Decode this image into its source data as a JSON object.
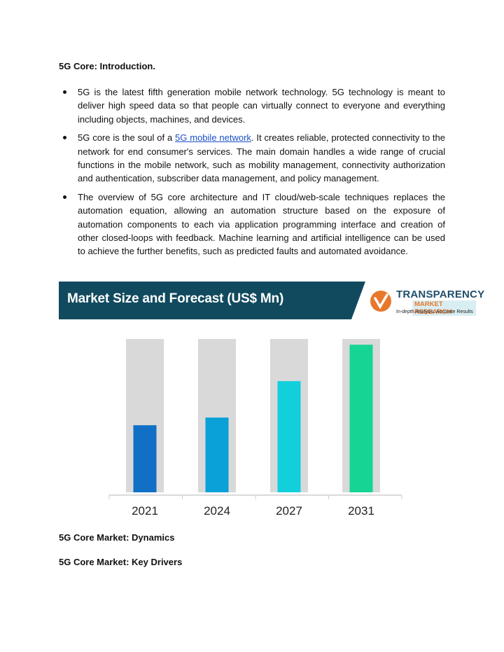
{
  "headings": {
    "intro": "5G Core: Introduction.",
    "dynamics": "5G Core Market: Dynamics",
    "drivers": "5G Core Market: Key Drivers"
  },
  "bullets": [
    {
      "text": "5G is the latest fifth generation mobile network technology. 5G technology is meant to deliver high speed data so that people can virtually connect to everyone and everything including objects, machines, and devices."
    },
    {
      "pre": "5G core is the soul of a ",
      "link": "5G mobile network",
      "post": ". It creates reliable, protected connectivity to the network for end consumer's services. The main domain handles a wide range of crucial functions in the mobile network, such as mobility management, connectivity authorization and authentication, subscriber data management, and policy management."
    },
    {
      "text": "The overview of 5G core architecture and IT cloud/web-scale techniques replaces the automation equation, allowing an automation structure based on the exposure of automation components to each via application programming interface and creation of other closed-loops with feedback. Machine learning and artificial intelligence can be used to achieve the further benefits, such as predicted faults and automated avoidance."
    }
  ],
  "banner": {
    "title": "Market Size and Forecast (US$ Mn)",
    "logo_name": "TRANSPARENCY",
    "logo_sub": "MARKET RESEARCH",
    "logo_tagline": "In-depth Analysis. Accurate Results",
    "colors": {
      "banner": "#114a5f",
      "logo_orange": "#e8782a",
      "logo_teal": "#1f4e6b"
    }
  },
  "chart_data": {
    "type": "bar",
    "title": "Market Size and Forecast (US$ Mn)",
    "categories": [
      "2021",
      "2024",
      "2027",
      "2031"
    ],
    "values": [
      35,
      39,
      58,
      77
    ],
    "ylim": [
      0,
      80
    ],
    "colors": [
      "#1170c6",
      "#0aa0d8",
      "#12cfdc",
      "#16d494"
    ],
    "track_color": "#d9d9d9",
    "grid": false
  }
}
